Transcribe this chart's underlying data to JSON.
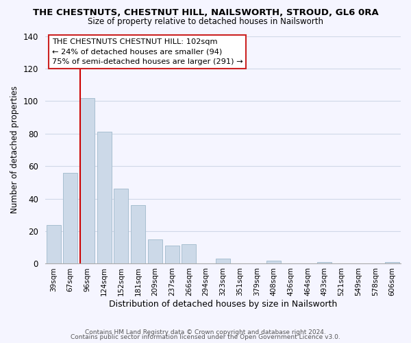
{
  "title": "THE CHESTNUTS, CHESTNUT HILL, NAILSWORTH, STROUD, GL6 0RA",
  "subtitle": "Size of property relative to detached houses in Nailsworth",
  "xlabel": "Distribution of detached houses by size in Nailsworth",
  "ylabel": "Number of detached properties",
  "bar_labels": [
    "39sqm",
    "67sqm",
    "96sqm",
    "124sqm",
    "152sqm",
    "181sqm",
    "209sqm",
    "237sqm",
    "266sqm",
    "294sqm",
    "323sqm",
    "351sqm",
    "379sqm",
    "408sqm",
    "436sqm",
    "464sqm",
    "493sqm",
    "521sqm",
    "549sqm",
    "578sqm",
    "606sqm"
  ],
  "bar_values": [
    24,
    56,
    102,
    81,
    46,
    36,
    15,
    11,
    12,
    0,
    3,
    0,
    0,
    2,
    0,
    0,
    1,
    0,
    0,
    0,
    1
  ],
  "bar_color": "#ccd9e8",
  "bar_edge_color": "#a8bfd0",
  "vline_color": "#cc0000",
  "ylim": [
    0,
    140
  ],
  "annotation_box_text": "THE CHESTNUTS CHESTNUT HILL: 102sqm\n← 24% of detached houses are smaller (94)\n75% of semi-detached houses are larger (291) →",
  "footer_line1": "Contains HM Land Registry data © Crown copyright and database right 2024.",
  "footer_line2": "Contains public sector information licensed under the Open Government Licence v3.0.",
  "background_color": "#f5f5ff",
  "grid_color": "#d0d8e8"
}
